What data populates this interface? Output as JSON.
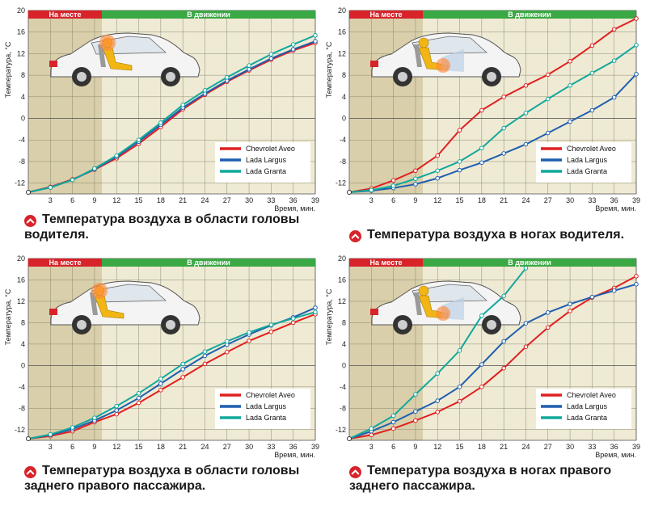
{
  "phases": {
    "parked": "На месте",
    "driving": "В движении"
  },
  "axes": {
    "ylabel": "Температура, °C",
    "xlabel": "Время, мин."
  },
  "colors": {
    "Chevrolet Aveo": "#e02020",
    "Lada Largus": "#1f5fb0",
    "Lada Granta": "#12a89c",
    "plot_bg": "#efead4",
    "parked_shade": "#d9cfaa",
    "phase_red": "#d8232a",
    "phase_green": "#3aa844"
  },
  "icons": {
    "car": "car-cutaway-icon",
    "bullet": "chevron-up-circle-icon"
  },
  "chart_data": [
    {
      "type": "line",
      "caption": "Температура воздуха в области головы водителя.",
      "xlabel": "Время, мин.",
      "ylabel": "Температура, °C",
      "xlim": [
        0,
        39
      ],
      "ylim": [
        -14,
        20
      ],
      "xticks": [
        3,
        6,
        9,
        12,
        15,
        18,
        21,
        24,
        27,
        30,
        33,
        36,
        39
      ],
      "yticks": [
        -12,
        -8,
        -4,
        0,
        4,
        8,
        12,
        16,
        20
      ],
      "parked_until": 10,
      "legend_position": "bottom-right",
      "series": [
        {
          "name": "Chevrolet Aveo",
          "points": [
            [
              0,
              -13.7
            ],
            [
              3,
              -12.7
            ],
            [
              6,
              -11.3
            ],
            [
              9,
              -9.5
            ],
            [
              12,
              -7.4
            ],
            [
              15,
              -4.7
            ],
            [
              18,
              -1.6
            ],
            [
              21,
              1.7
            ],
            [
              24,
              4.4
            ],
            [
              27,
              6.8
            ],
            [
              30,
              8.9
            ],
            [
              33,
              10.9
            ],
            [
              36,
              12.6
            ],
            [
              39,
              14.0
            ]
          ]
        },
        {
          "name": "Lada Largus",
          "points": [
            [
              0,
              -13.7
            ],
            [
              3,
              -12.8
            ],
            [
              6,
              -11.4
            ],
            [
              9,
              -9.4
            ],
            [
              12,
              -7.1
            ],
            [
              15,
              -4.3
            ],
            [
              18,
              -1.2
            ],
            [
              21,
              2.0
            ],
            [
              24,
              4.6
            ],
            [
              27,
              7.0
            ],
            [
              30,
              9.1
            ],
            [
              33,
              11.1
            ],
            [
              36,
              12.8
            ],
            [
              39,
              14.3
            ]
          ]
        },
        {
          "name": "Lada Granta",
          "points": [
            [
              0,
              -13.7
            ],
            [
              3,
              -12.8
            ],
            [
              6,
              -11.4
            ],
            [
              9,
              -9.3
            ],
            [
              12,
              -6.9
            ],
            [
              15,
              -4.0
            ],
            [
              18,
              -0.8
            ],
            [
              21,
              2.5
            ],
            [
              24,
              5.2
            ],
            [
              27,
              7.6
            ],
            [
              30,
              9.8
            ],
            [
              33,
              11.9
            ],
            [
              36,
              13.7
            ],
            [
              39,
              15.4
            ]
          ]
        }
      ]
    },
    {
      "type": "line",
      "caption": "Температура воздуха в ногах водителя.",
      "xlabel": "Время, мин.",
      "ylabel": "Температура, °C",
      "xlim": [
        0,
        39
      ],
      "ylim": [
        -14,
        20
      ],
      "xticks": [
        3,
        6,
        9,
        12,
        15,
        18,
        21,
        24,
        27,
        30,
        33,
        36,
        39
      ],
      "yticks": [
        -12,
        -8,
        -4,
        0,
        4,
        8,
        12,
        16,
        20
      ],
      "parked_until": 10,
      "legend_position": "bottom-right",
      "series": [
        {
          "name": "Chevrolet Aveo",
          "points": [
            [
              0,
              -13.7
            ],
            [
              3,
              -13.0
            ],
            [
              6,
              -11.5
            ],
            [
              9,
              -9.7
            ],
            [
              12,
              -6.9
            ],
            [
              15,
              -2.2
            ],
            [
              18,
              1.5
            ],
            [
              21,
              4.0
            ],
            [
              24,
              6.1
            ],
            [
              27,
              8.1
            ],
            [
              30,
              10.6
            ],
            [
              33,
              13.5
            ],
            [
              36,
              16.5
            ],
            [
              39,
              18.5
            ]
          ]
        },
        {
          "name": "Lada Largus",
          "points": [
            [
              0,
              -13.7
            ],
            [
              3,
              -13.4
            ],
            [
              6,
              -12.9
            ],
            [
              9,
              -12.2
            ],
            [
              12,
              -11.1
            ],
            [
              15,
              -9.6
            ],
            [
              18,
              -8.2
            ],
            [
              21,
              -6.5
            ],
            [
              24,
              -4.8
            ],
            [
              27,
              -2.7
            ],
            [
              30,
              -0.6
            ],
            [
              33,
              1.5
            ],
            [
              36,
              3.9
            ],
            [
              39,
              8.2
            ]
          ]
        },
        {
          "name": "Lada Granta",
          "points": [
            [
              0,
              -13.7
            ],
            [
              3,
              -13.3
            ],
            [
              6,
              -12.5
            ],
            [
              9,
              -11.2
            ],
            [
              12,
              -9.7
            ],
            [
              15,
              -8.0
            ],
            [
              18,
              -5.5
            ],
            [
              21,
              -1.8
            ],
            [
              24,
              1.0
            ],
            [
              27,
              3.6
            ],
            [
              30,
              6.1
            ],
            [
              33,
              8.4
            ],
            [
              36,
              10.7
            ],
            [
              39,
              13.6
            ]
          ]
        }
      ]
    },
    {
      "type": "line",
      "caption": "Температура воздуха в области головы заднего правого пассажира.",
      "xlabel": "Время, мин.",
      "ylabel": "Температура, °C",
      "xlim": [
        0,
        39
      ],
      "ylim": [
        -14,
        20
      ],
      "xticks": [
        3,
        6,
        9,
        12,
        15,
        18,
        21,
        24,
        27,
        30,
        33,
        36,
        39
      ],
      "yticks": [
        -12,
        -8,
        -4,
        0,
        4,
        8,
        12,
        16,
        20
      ],
      "parked_until": 10,
      "legend_position": "bottom-right",
      "series": [
        {
          "name": "Chevrolet Aveo",
          "points": [
            [
              0,
              -13.7
            ],
            [
              3,
              -13.2
            ],
            [
              6,
              -12.3
            ],
            [
              9,
              -10.6
            ],
            [
              12,
              -9.1
            ],
            [
              15,
              -7.0
            ],
            [
              18,
              -4.6
            ],
            [
              21,
              -2.2
            ],
            [
              24,
              0.3
            ],
            [
              27,
              2.5
            ],
            [
              30,
              4.6
            ],
            [
              33,
              6.3
            ],
            [
              36,
              8.0
            ],
            [
              39,
              9.6
            ]
          ]
        },
        {
          "name": "Lada Largus",
          "points": [
            [
              0,
              -13.7
            ],
            [
              3,
              -13.0
            ],
            [
              6,
              -11.9
            ],
            [
              9,
              -10.3
            ],
            [
              12,
              -8.4
            ],
            [
              15,
              -6.1
            ],
            [
              18,
              -3.4
            ],
            [
              21,
              -0.7
            ],
            [
              24,
              1.8
            ],
            [
              27,
              3.9
            ],
            [
              30,
              5.8
            ],
            [
              33,
              7.5
            ],
            [
              36,
              9.0
            ],
            [
              39,
              10.8
            ]
          ]
        },
        {
          "name": "Lada Granta",
          "points": [
            [
              0,
              -13.7
            ],
            [
              3,
              -12.9
            ],
            [
              6,
              -11.6
            ],
            [
              9,
              -9.8
            ],
            [
              12,
              -7.6
            ],
            [
              15,
              -5.2
            ],
            [
              18,
              -2.5
            ],
            [
              21,
              0.3
            ],
            [
              24,
              2.6
            ],
            [
              27,
              4.5
            ],
            [
              30,
              6.2
            ],
            [
              33,
              7.6
            ],
            [
              36,
              8.8
            ],
            [
              39,
              10.0
            ]
          ]
        }
      ]
    },
    {
      "type": "line",
      "caption": "Температура воздуха в ногах правого заднего пассажира.",
      "xlabel": "Время, мин.",
      "ylabel": "Температура, °C",
      "xlim": [
        0,
        39
      ],
      "ylim": [
        -14,
        20
      ],
      "xticks": [
        3,
        6,
        9,
        12,
        15,
        18,
        21,
        24,
        27,
        30,
        33,
        36,
        39
      ],
      "yticks": [
        -12,
        -8,
        -4,
        0,
        4,
        8,
        12,
        16,
        20
      ],
      "parked_until": 10,
      "legend_position": "bottom-right",
      "series": [
        {
          "name": "Chevrolet Aveo",
          "points": [
            [
              0,
              -13.7
            ],
            [
              3,
              -13.0
            ],
            [
              6,
              -11.8
            ],
            [
              9,
              -10.3
            ],
            [
              12,
              -8.7
            ],
            [
              15,
              -6.7
            ],
            [
              18,
              -4.0
            ],
            [
              21,
              -0.5
            ],
            [
              24,
              3.5
            ],
            [
              27,
              7.1
            ],
            [
              30,
              10.2
            ],
            [
              33,
              12.7
            ],
            [
              36,
              14.5
            ],
            [
              39,
              16.7
            ]
          ]
        },
        {
          "name": "Lada Largus",
          "points": [
            [
              0,
              -13.7
            ],
            [
              3,
              -12.3
            ],
            [
              6,
              -10.6
            ],
            [
              9,
              -8.6
            ],
            [
              12,
              -6.6
            ],
            [
              15,
              -4.0
            ],
            [
              18,
              0.2
            ],
            [
              21,
              4.5
            ],
            [
              24,
              7.9
            ],
            [
              27,
              9.9
            ],
            [
              30,
              11.5
            ],
            [
              33,
              12.8
            ],
            [
              36,
              14.0
            ],
            [
              39,
              15.2
            ]
          ]
        },
        {
          "name": "Lada Granta",
          "points": [
            [
              0,
              -13.7
            ],
            [
              3,
              -11.8
            ],
            [
              6,
              -9.4
            ],
            [
              9,
              -5.4
            ],
            [
              12,
              -1.5
            ],
            [
              15,
              2.8
            ],
            [
              18,
              9.3
            ],
            [
              21,
              13.0
            ],
            [
              24,
              18.2
            ]
          ]
        }
      ]
    }
  ]
}
